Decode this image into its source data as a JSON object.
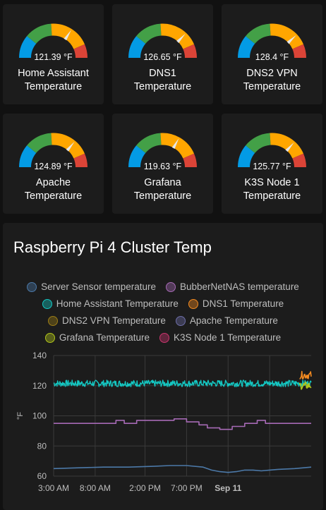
{
  "gauges": [
    {
      "value_text": "121.39 °F",
      "name_line1": "Home Assistant",
      "name_line2": "Temperature",
      "value": 121.39
    },
    {
      "value_text": "126.65 °F",
      "name_line1": "DNS1",
      "name_line2": "Temperature",
      "value": 126.65
    },
    {
      "value_text": "128.4 °F",
      "name_line1": "DNS2 VPN",
      "name_line2": "Temperature",
      "value": 128.4
    },
    {
      "value_text": "124.89 °F",
      "name_line1": "Apache",
      "name_line2": "Temperature",
      "value": 124.89
    },
    {
      "value_text": "119.63 °F",
      "name_line1": "Grafana",
      "name_line2": "Temperature",
      "value": 119.63
    },
    {
      "value_text": "125.77 °F",
      "name_line1": "K3S Node 1",
      "name_line2": "Temperature",
      "value": 125.77
    }
  ],
  "gauge_scale": {
    "min": 60,
    "max": 150
  },
  "gauge_colors": {
    "blue": "#039be5",
    "green": "#43a047",
    "yellow": "#ffa600",
    "red": "#db4437",
    "needle": "#e8e8e8"
  },
  "chart": {
    "title": "Raspberry Pi 4 Cluster Temp",
    "legend": [
      {
        "label": "Server Sensor temperature",
        "color": "#4c79a8"
      },
      {
        "label": "BubberNetNAS temperature",
        "color": "#a66ab5"
      },
      {
        "label": "Home Assistant Temperature",
        "color": "#14c7c2"
      },
      {
        "label": "DNS1 Temperature",
        "color": "#f38a20"
      },
      {
        "label": "DNS2 VPN Temperature",
        "color": "#9b7d17"
      },
      {
        "label": "Apache Temperature",
        "color": "#6e6ea8"
      },
      {
        "label": "Grafana Temperature",
        "color": "#b1c51b"
      },
      {
        "label": "K3S Node 1 Temperature",
        "color": "#c9356e"
      }
    ]
  },
  "chart_data": {
    "type": "line",
    "title": "Raspberry Pi 4 Cluster Temp",
    "ylabel": "°F",
    "ylim": [
      60,
      140
    ],
    "yticks": [
      60,
      80,
      100,
      120,
      140
    ],
    "xlim": [
      0,
      31
    ],
    "x_tick_labels": [
      {
        "label": "3:00 AM",
        "t": 0
      },
      {
        "label": "8:00 AM",
        "t": 5
      },
      {
        "label": "2:00 PM",
        "t": 11
      },
      {
        "label": "7:00 PM",
        "t": 16
      },
      {
        "label": "Sep 11",
        "t": 21,
        "bold": true
      },
      {
        "label": "",
        "t": 26
      }
    ],
    "series": [
      {
        "name": "Server Sensor temperature",
        "color": "#4c79a8",
        "x": [
          0,
          3,
          6,
          9,
          12,
          14,
          16,
          18,
          19,
          20,
          21,
          22,
          23,
          24,
          25,
          27,
          29,
          31
        ],
        "y": [
          65,
          65.5,
          66,
          66,
          66.5,
          67,
          67,
          66,
          64,
          63,
          62.5,
          63,
          64,
          64,
          63.5,
          64.5,
          65,
          66
        ]
      },
      {
        "name": "BubberNetNAS temperature",
        "color": "#a66ab5",
        "x": [
          0,
          7.5,
          7.5,
          8.5,
          8.5,
          10,
          10,
          14.5,
          14.5,
          16,
          16,
          17.5,
          17.5,
          18.5,
          18.5,
          20,
          20,
          21.5,
          21.5,
          23,
          23,
          24.5,
          24.5,
          25.5,
          25.5,
          31
        ],
        "y": [
          95,
          95,
          97,
          97,
          95,
          95,
          97,
          97,
          98,
          98,
          96,
          96,
          94,
          94,
          92,
          92,
          91,
          91,
          93,
          93,
          95,
          95,
          97,
          97,
          95,
          95
        ]
      },
      {
        "name": "Home Assistant Temperature",
        "color": "#14c7c2",
        "noisy": true,
        "base": 121.5,
        "amp": 2.2
      },
      {
        "name": "DNS1 Temperature",
        "color": "#f38a20",
        "tail": true,
        "base": 127
      },
      {
        "name": "Grafana Temperature",
        "color": "#b1c51b",
        "tail": true,
        "base": 120
      }
    ]
  }
}
